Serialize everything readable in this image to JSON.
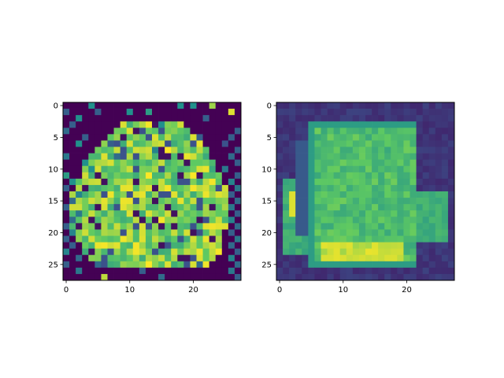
{
  "chart_data": [
    {
      "type": "heatmap",
      "xlim": [
        -0.5,
        27.5
      ],
      "ylim": [
        27.5,
        -0.5
      ],
      "xticks": [
        0,
        10,
        20
      ],
      "yticks": [
        0,
        5,
        10,
        15,
        20,
        25
      ],
      "xtick_labels": [
        "0",
        "10",
        "20"
      ],
      "ytick_labels": [
        "0",
        "5",
        "10",
        "15",
        "20",
        "25"
      ],
      "grid": false,
      "colormap": "viridis",
      "colormap_stops": [
        "#440154",
        "#3b528b",
        "#21918c",
        "#5ec962",
        "#fde725"
      ],
      "background_value": 0,
      "pixels": [
        [
          0,
          4,
          0.5
        ],
        [
          0,
          18,
          0.5
        ],
        [
          0,
          20,
          0.5
        ],
        [
          0,
          23,
          0.85
        ],
        [
          1,
          0,
          0.3
        ],
        [
          1,
          5,
          0.3
        ],
        [
          1,
          10,
          0.5
        ],
        [
          1,
          13,
          0.55
        ],
        [
          1,
          26,
          0.95
        ],
        [
          2,
          2,
          0.5
        ],
        [
          2,
          22,
          0.3
        ],
        [
          3,
          1,
          0.3
        ],
        [
          3,
          15,
          0.5
        ],
        [
          4,
          0,
          0.35
        ],
        [
          4,
          27,
          0.3
        ],
        [
          5,
          3,
          0.3
        ],
        [
          5,
          21,
          0.3
        ],
        [
          5,
          26,
          0.3
        ],
        [
          6,
          2,
          0.5
        ],
        [
          6,
          7,
          0.3
        ],
        [
          6,
          25,
          0.25
        ],
        [
          7,
          14,
          0.45
        ],
        [
          7,
          27,
          0.3
        ],
        [
          8,
          0,
          0.4
        ],
        [
          8,
          8,
          0.35
        ],
        [
          8,
          26,
          0.35
        ],
        [
          9,
          3,
          0.5
        ],
        [
          9,
          27,
          0.3
        ],
        [
          10,
          4,
          0.5
        ],
        [
          10,
          25,
          0.4
        ],
        [
          11,
          0,
          0.55
        ],
        [
          11,
          27,
          0.3
        ],
        [
          12,
          1,
          0.5
        ],
        [
          12,
          26,
          0.45
        ],
        [
          13,
          0,
          0.3
        ],
        [
          13,
          27,
          0.4
        ],
        [
          14,
          2,
          0.45
        ],
        [
          14,
          26,
          0.3
        ],
        [
          15,
          1,
          0.35
        ],
        [
          15,
          27,
          0.35
        ],
        [
          16,
          0,
          0.3
        ],
        [
          16,
          26,
          0.4
        ],
        [
          17,
          2,
          0.4
        ],
        [
          17,
          27,
          0.3
        ],
        [
          18,
          1,
          0.35
        ],
        [
          18,
          26,
          0.45
        ],
        [
          19,
          0,
          0.3
        ],
        [
          19,
          27,
          0.35
        ],
        [
          20,
          1,
          0.45
        ],
        [
          20,
          26,
          0.3
        ],
        [
          21,
          0,
          0.3
        ],
        [
          21,
          27,
          0.4
        ],
        [
          22,
          1,
          0.3
        ],
        [
          22,
          26,
          0.35
        ],
        [
          23,
          0,
          0.45
        ],
        [
          23,
          27,
          0.3
        ],
        [
          24,
          2,
          0.35
        ],
        [
          24,
          26,
          0.45
        ],
        [
          25,
          0,
          0.3
        ],
        [
          25,
          5,
          0.35
        ],
        [
          25,
          21,
          0.35
        ],
        [
          25,
          27,
          0.35
        ],
        [
          26,
          2,
          0.4
        ],
        [
          26,
          12,
          0.3
        ],
        [
          26,
          26,
          0.4
        ],
        [
          27,
          6,
          0.9
        ],
        [
          27,
          15,
          0.35
        ],
        [
          27,
          27,
          0.3
        ]
      ],
      "hull_rows": [
        [
          3,
          9,
          18
        ],
        [
          4,
          8,
          19
        ],
        [
          5,
          7,
          20
        ],
        [
          6,
          6,
          21
        ],
        [
          7,
          5,
          22
        ],
        [
          8,
          4,
          22
        ],
        [
          9,
          4,
          23
        ],
        [
          10,
          3,
          23
        ],
        [
          11,
          3,
          24
        ],
        [
          12,
          2,
          24
        ],
        [
          13,
          2,
          25
        ],
        [
          14,
          1,
          25
        ],
        [
          15,
          1,
          25
        ],
        [
          16,
          1,
          25
        ],
        [
          17,
          1,
          25
        ],
        [
          18,
          1,
          25
        ],
        [
          19,
          1,
          25
        ],
        [
          20,
          2,
          24
        ],
        [
          21,
          2,
          24
        ],
        [
          22,
          3,
          24
        ],
        [
          23,
          3,
          24
        ],
        [
          24,
          4,
          23
        ],
        [
          25,
          5,
          22
        ]
      ]
    },
    {
      "type": "heatmap",
      "xlim": [
        -0.5,
        27.5
      ],
      "ylim": [
        27.5,
        -0.5
      ],
      "xticks": [
        0,
        10,
        20
      ],
      "yticks": [
        0,
        5,
        10,
        15,
        20,
        25
      ],
      "xtick_labels": [
        "0",
        "10",
        "20"
      ],
      "ytick_labels": [
        "0",
        "5",
        "10",
        "15",
        "20",
        "25"
      ],
      "grid": false,
      "colormap": "viridis",
      "colormap_stops": [
        "#440154",
        "#3b528b",
        "#21918c",
        "#5ec962",
        "#fde725"
      ],
      "background_value": 0.12,
      "body": {
        "row_start": 3,
        "row_end": 25,
        "col_start": 5,
        "col_end": 21,
        "value": 0.7
      },
      "handle": {
        "row_start": 12,
        "row_end": 23,
        "col_start": 1,
        "col_end": 7,
        "value": 0.68
      },
      "right_ear": {
        "row_start": 14,
        "row_end": 21,
        "col_start": 20,
        "col_end": 26,
        "value": 0.68
      }
    }
  ]
}
